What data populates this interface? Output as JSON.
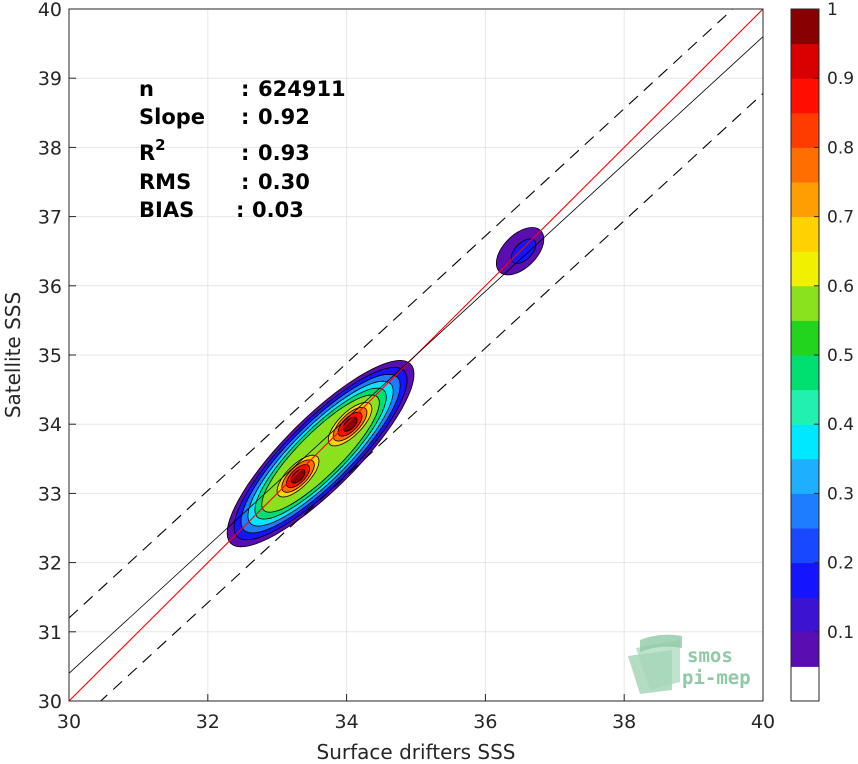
{
  "chart_data": {
    "type": "contour",
    "xlabel": "Surface drifters SSS",
    "ylabel": "Satellite SSS",
    "xlim": [
      30,
      40
    ],
    "ylim": [
      30,
      40
    ],
    "xticks": [
      "30",
      "32",
      "34",
      "36",
      "38",
      "40"
    ],
    "yticks": [
      "30",
      "31",
      "32",
      "33",
      "34",
      "35",
      "36",
      "37",
      "38",
      "39",
      "40"
    ],
    "grid": true,
    "stats": [
      {
        "key": "n",
        "sep": ":",
        "value": "624911"
      },
      {
        "key": "Slope",
        "sep": ":",
        "value": "0.92"
      },
      {
        "key": "R",
        "sup": "2",
        "sep": ":",
        "value": "0.93"
      },
      {
        "key": "RMS",
        "sep": ":",
        "value": "0.30"
      },
      {
        "key": "BIAS",
        "sep": ":",
        "value": "0.03"
      }
    ],
    "lines": [
      {
        "name": "identity",
        "style": "red-solid",
        "slope": 1.0,
        "intercept": 0.0
      },
      {
        "name": "regression",
        "style": "black-solid",
        "slope": 0.92,
        "intercept": 2.8
      },
      {
        "name": "upper-bound",
        "style": "black-dashed",
        "slope": 0.92,
        "intercept": 3.6
      },
      {
        "name": "lower-bound",
        "style": "black-dashed",
        "slope": 0.92,
        "intercept": 1.98
      }
    ],
    "density_peaks": [
      {
        "x": 33.3,
        "y": 33.25,
        "level": 1.0
      },
      {
        "x": 34.05,
        "y": 34.0,
        "level": 0.95
      },
      {
        "x": 36.5,
        "y": 36.5,
        "level": 0.15
      }
    ],
    "colorbar": {
      "ticks": [
        "0.1",
        "0.2",
        "0.3",
        "0.4",
        "0.5",
        "0.6",
        "0.7",
        "0.8",
        "0.9",
        "1"
      ],
      "levels": [
        {
          "lo": 0.0,
          "hi": 0.05,
          "color": "#ffffff"
        },
        {
          "lo": 0.05,
          "hi": 0.1,
          "color": "#5a0db0"
        },
        {
          "lo": 0.1,
          "hi": 0.15,
          "color": "#3a14d0"
        },
        {
          "lo": 0.15,
          "hi": 0.2,
          "color": "#1414ff"
        },
        {
          "lo": 0.2,
          "hi": 0.25,
          "color": "#1848ff"
        },
        {
          "lo": 0.25,
          "hi": 0.3,
          "color": "#1e7cff"
        },
        {
          "lo": 0.3,
          "hi": 0.35,
          "color": "#1eb0ff"
        },
        {
          "lo": 0.35,
          "hi": 0.4,
          "color": "#00e8ff"
        },
        {
          "lo": 0.4,
          "hi": 0.45,
          "color": "#22f0b0"
        },
        {
          "lo": 0.45,
          "hi": 0.5,
          "color": "#00e070"
        },
        {
          "lo": 0.5,
          "hi": 0.55,
          "color": "#22d41e"
        },
        {
          "lo": 0.55,
          "hi": 0.6,
          "color": "#8ae21e"
        },
        {
          "lo": 0.6,
          "hi": 0.65,
          "color": "#f0f000"
        },
        {
          "lo": 0.65,
          "hi": 0.7,
          "color": "#ffd200"
        },
        {
          "lo": 0.7,
          "hi": 0.75,
          "color": "#ff9e00"
        },
        {
          "lo": 0.75,
          "hi": 0.8,
          "color": "#ff6e00"
        },
        {
          "lo": 0.8,
          "hi": 0.85,
          "color": "#ff3c00"
        },
        {
          "lo": 0.85,
          "hi": 0.9,
          "color": "#ff0f00"
        },
        {
          "lo": 0.9,
          "hi": 0.95,
          "color": "#d80000"
        },
        {
          "lo": 0.95,
          "hi": 1.0,
          "color": "#880000"
        }
      ]
    }
  },
  "logo": {
    "line1": "smos",
    "line2": "pi-mep"
  }
}
